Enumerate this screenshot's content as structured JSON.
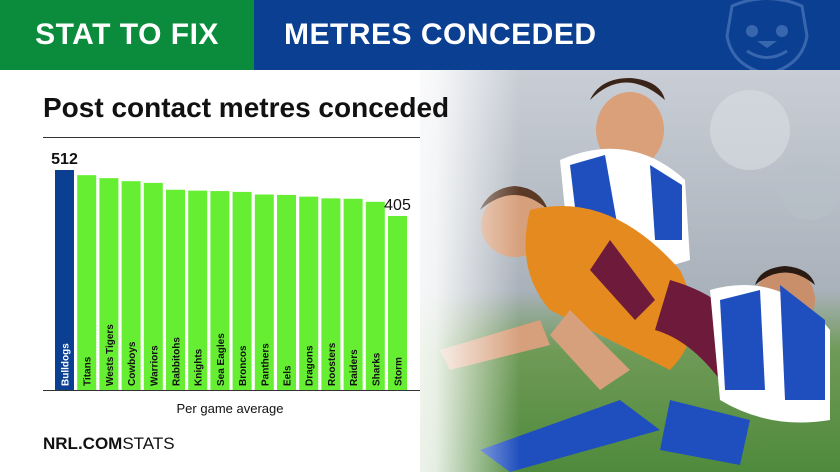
{
  "header": {
    "left_label": "STAT TO FIX",
    "right_label": "METRES CONCEDED",
    "logo_icon": "bulldog-logo-icon",
    "left_color": "#0a8c3c",
    "right_color": "#0b3f91"
  },
  "photo": {
    "subject": "rugby-league-tackle-photo"
  },
  "brand": {
    "prefix": "NRL.COM",
    "suffix": "STATS"
  },
  "chart_data": {
    "type": "bar",
    "title": "Post contact metres conceded",
    "xlabel": "Per game average",
    "ylabel": "",
    "categories": [
      "Bulldogs",
      "Titans",
      "Wests Tigers",
      "Cowboys",
      "Warriors",
      "Rabbitohs",
      "Knights",
      "Sea Eagles",
      "Broncos",
      "Panthers",
      "Eels",
      "Dragons",
      "Roosters",
      "Raiders",
      "Sharks",
      "Storm"
    ],
    "values": [
      512,
      500,
      493,
      486,
      482,
      466,
      464,
      463,
      461,
      455,
      454,
      450,
      446,
      445,
      438,
      405
    ],
    "value_labels": [
      {
        "category": "Bulldogs",
        "text": "512"
      },
      {
        "category": "Storm",
        "text": "405"
      }
    ],
    "ylim": [
      0,
      512
    ],
    "highlight_category": "Bulldogs",
    "colors": {
      "highlight": "#0b3f91",
      "default": "#66ee33",
      "label": "#111111"
    },
    "grid": false,
    "legend": "none"
  }
}
